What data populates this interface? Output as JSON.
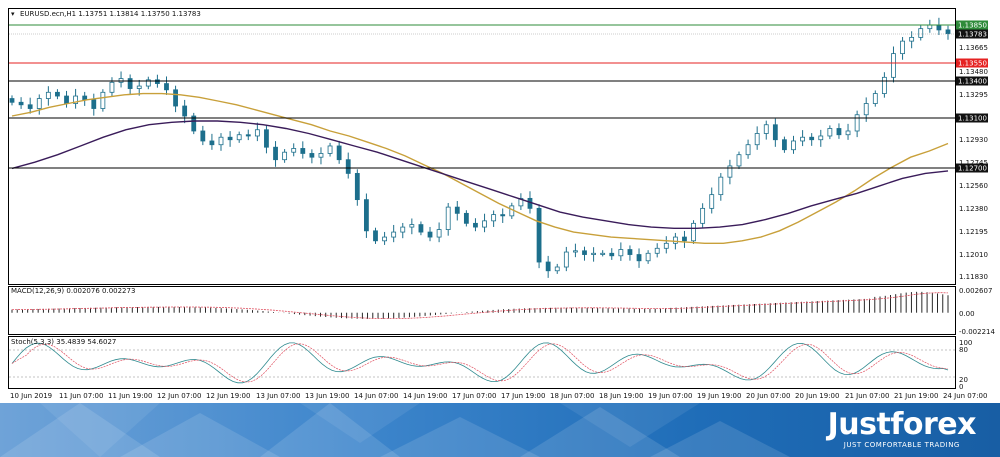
{
  "symbol_title": "EURUSD.ecn,H1  1.13751 1.13814 1.13750 1.13783",
  "macd_title": "MACD(12,26,9) 0.002076 0.002273",
  "stoch_title": "Stoch(5,3,3) 35.4839 54.6027",
  "price_axis": [
    "1.13665",
    "1.13480",
    "1.13295",
    "1.12930",
    "1.12745",
    "1.12560",
    "1.12380",
    "1.12195",
    "1.12010",
    "1.11830"
  ],
  "macd_axis": [
    "0.002607",
    "0.00",
    "-0.002214"
  ],
  "stoch_axis": [
    "100",
    "80",
    "20",
    "0"
  ],
  "price_tags": [
    {
      "value": "1.13850",
      "bg": "#2e8b3a",
      "fg": "#ffffff",
      "level": 1.1385
    },
    {
      "value": "1.13783",
      "bg": "#111111",
      "fg": "#ffffff",
      "level": 1.13783
    },
    {
      "value": "1.13550",
      "bg": "#e52222",
      "fg": "#ffffff",
      "level": 1.1355
    },
    {
      "value": "1.13400",
      "bg": "#111111",
      "fg": "#ffffff",
      "level": 1.134
    },
    {
      "value": "1.13100",
      "bg": "#111111",
      "fg": "#ffffff",
      "level": 1.131
    },
    {
      "value": "1.12700",
      "bg": "#111111",
      "fg": "#ffffff",
      "level": 1.127
    }
  ],
  "time_axis": [
    "10 Jun 2019",
    "11 Jun 07:00",
    "11 Jun 19:00",
    "12 Jun 07:00",
    "12 Jun 19:00",
    "13 Jun 07:00",
    "13 Jun 19:00",
    "14 Jun 07:00",
    "14 Jun 19:00",
    "17 Jun 07:00",
    "17 Jun 19:00",
    "18 Jun 07:00",
    "18 Jun 19:00",
    "19 Jun 07:00",
    "19 Jun 19:00",
    "20 Jun 07:00",
    "20 Jun 19:00",
    "21 Jun 07:00",
    "21 Jun 19:00",
    "24 Jun 07:00"
  ],
  "brand": {
    "name": "Justforex",
    "tagline": "JUST COMFORTABLE TRADING"
  },
  "colors": {
    "ma_fast": "#c8a03a",
    "ma_slow": "#3a1c5a",
    "candle": "#1d6f8c",
    "signal": "#e05060",
    "stoch_main": "#2f8a8f",
    "grid": "#d0d0d0"
  },
  "chart_data": {
    "type": "candlestick",
    "symbol": "EURUSD.ecn",
    "timeframe": "H1",
    "ohlc_last": {
      "open": 1.13751,
      "high": 1.13814,
      "low": 1.1375,
      "close": 1.13783
    },
    "closes": [
      1.1323,
      1.1321,
      1.1318,
      1.1326,
      1.1331,
      1.1328,
      1.1322,
      1.1328,
      1.1325,
      1.1318,
      1.1331,
      1.1339,
      1.1342,
      1.1334,
      1.1336,
      1.1341,
      1.1338,
      1.1333,
      1.132,
      1.1312,
      1.13,
      1.1292,
      1.1289,
      1.1295,
      1.1293,
      1.1297,
      1.1296,
      1.1301,
      1.1287,
      1.1277,
      1.1283,
      1.1286,
      1.1282,
      1.1279,
      1.1282,
      1.1288,
      1.1277,
      1.1266,
      1.1245,
      1.122,
      1.1212,
      1.1215,
      1.1219,
      1.1223,
      1.1225,
      1.1219,
      1.1215,
      1.1221,
      1.1239,
      1.1234,
      1.1226,
      1.1223,
      1.1228,
      1.1233,
      1.1232,
      1.124,
      1.1246,
      1.1238,
      1.1195,
      1.1188,
      1.1191,
      1.1203,
      1.1204,
      1.1201,
      1.1202,
      1.1202,
      1.12,
      1.1205,
      1.1201,
      1.1196,
      1.1202,
      1.1206,
      1.121,
      1.1215,
      1.1212,
      1.1226,
      1.1238,
      1.1249,
      1.1263,
      1.1272,
      1.1281,
      1.1289,
      1.1298,
      1.1305,
      1.1293,
      1.1285,
      1.1292,
      1.1295,
      1.1293,
      1.1296,
      1.1302,
      1.1297,
      1.13,
      1.1313,
      1.1322,
      1.133,
      1.1343,
      1.1362,
      1.1372,
      1.1375,
      1.1382,
      1.1385,
      1.1381,
      1.1378
    ],
    "ma_fast": [
      1.1312,
      1.1315,
      1.1319,
      1.1322,
      1.1325,
      1.1327,
      1.1329,
      1.133,
      1.133,
      1.1329,
      1.1327,
      1.1324,
      1.1321,
      1.1317,
      1.1313,
      1.1309,
      1.1305,
      1.13,
      1.1296,
      1.1291,
      1.1286,
      1.128,
      1.1273,
      1.1266,
      1.1258,
      1.125,
      1.1242,
      1.1235,
      1.1228,
      1.1223,
      1.1219,
      1.1217,
      1.1215,
      1.1214,
      1.1213,
      1.1212,
      1.1211,
      1.121,
      1.121,
      1.1212,
      1.1215,
      1.122,
      1.1227,
      1.1235,
      1.1243,
      1.1252,
      1.1262,
      1.1271,
      1.1279,
      1.1284,
      1.129
    ],
    "ma_slow": [
      1.127,
      1.1275,
      1.1281,
      1.1288,
      1.1295,
      1.1301,
      1.1305,
      1.1307,
      1.1308,
      1.1308,
      1.1307,
      1.1305,
      1.1302,
      1.1298,
      1.1293,
      1.1288,
      1.1283,
      1.1277,
      1.1271,
      1.1265,
      1.1259,
      1.1253,
      1.1247,
      1.1241,
      1.1235,
      1.1231,
      1.1228,
      1.1225,
      1.1223,
      1.1222,
      1.1222,
      1.1223,
      1.1225,
      1.1229,
      1.1234,
      1.124,
      1.1245,
      1.125,
      1.1256,
      1.1262,
      1.1266,
      1.1268
    ],
    "horizontal_levels": [
      1.1385,
      1.1355,
      1.134,
      1.131,
      1.127
    ],
    "macd": {
      "last_main": 0.002076,
      "last_signal": 0.002273,
      "ylim": [
        -0.002214,
        0.002607
      ]
    },
    "stoch": {
      "k_period": 5,
      "d_period": 3,
      "slowing": 3,
      "last_k": 35.4839,
      "last_d": 54.6027,
      "levels": [
        20,
        80
      ],
      "ylim": [
        0,
        100
      ]
    }
  }
}
